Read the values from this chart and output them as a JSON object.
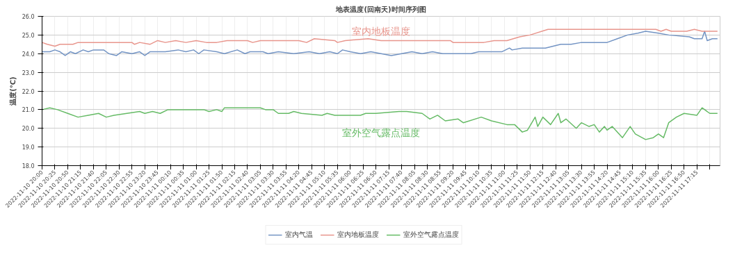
{
  "chart_data": {
    "type": "line",
    "title": "地表温度(回南天)时间序列图",
    "ylabel": "温度(℃)",
    "xlim": [
      "2022-11-10T20:00",
      "2022-11-11T18:00"
    ],
    "xticks": [
      {
        "value": "2022-11-10T20:00",
        "label": "2022-11-10 20:00"
      },
      {
        "value": "2022-11-10T20:25",
        "label": "2022-11-10 20:25"
      },
      {
        "value": "2022-11-10T20:50",
        "label": "2022-11-10 20:50"
      },
      {
        "value": "2022-11-10T21:15",
        "label": "2022-11-10 21:15"
      },
      {
        "value": "2022-11-10T21:40",
        "label": "2022-11-10 21:40"
      },
      {
        "value": "2022-11-10T22:05",
        "label": "2022-11-10 22:05"
      },
      {
        "value": "2022-11-10T22:30",
        "label": "2022-11-10 22:30"
      },
      {
        "value": "2022-11-10T22:55",
        "label": "2022-11-10 22:55"
      },
      {
        "value": "2022-11-10T23:20",
        "label": "2022-11-10 23:20"
      },
      {
        "value": "2022-11-10T23:45",
        "label": "2022-11-10 23:45"
      },
      {
        "value": "2022-11-11T00:10",
        "label": "2022-11-11 00:10"
      },
      {
        "value": "2022-11-11T00:35",
        "label": "2022-11-11 00:35"
      },
      {
        "value": "2022-11-11T01:00",
        "label": "2022-11-11 01:00"
      },
      {
        "value": "2022-11-11T01:25",
        "label": "2022-11-11 01:25"
      },
      {
        "value": "2022-11-11T01:50",
        "label": "2022-11-11 01:50"
      },
      {
        "value": "2022-11-11T02:15",
        "label": "2022-11-11 02:15"
      },
      {
        "value": "2022-11-11T02:40",
        "label": "2022-11-11 02:40"
      },
      {
        "value": "2022-11-11T03:05",
        "label": "2022-11-11 03:05"
      },
      {
        "value": "2022-11-11T03:30",
        "label": "2022-11-11 03:30"
      },
      {
        "value": "2022-11-11T03:55",
        "label": "2022-11-11 03:55"
      },
      {
        "value": "2022-11-11T04:20",
        "label": "2022-11-11 04:20"
      },
      {
        "value": "2022-11-11T04:45",
        "label": "2022-11-11 04:45"
      },
      {
        "value": "2022-11-11T05:10",
        "label": "2022-11-11 05:10"
      },
      {
        "value": "2022-11-11T05:35",
        "label": "2022-11-11 05:35"
      },
      {
        "value": "2022-11-11T06:00",
        "label": "2022-11-11 06:00"
      },
      {
        "value": "2022-11-11T06:25",
        "label": "2022-11-11 06:25"
      },
      {
        "value": "2022-11-11T06:50",
        "label": "2022-11-11 06:50"
      },
      {
        "value": "2022-11-11T07:15",
        "label": "2022-11-11 07:15"
      },
      {
        "value": "2022-11-11T07:40",
        "label": "2022-11-11 07:40"
      },
      {
        "value": "2022-11-11T08:05",
        "label": "2022-11-11 08:05"
      },
      {
        "value": "2022-11-11T08:30",
        "label": "2022-11-11 08:30"
      },
      {
        "value": "2022-11-11T08:55",
        "label": "2022-11-11 08:55"
      },
      {
        "value": "2022-11-11T09:20",
        "label": "2022-11-11 09:20"
      },
      {
        "value": "2022-11-11T09:45",
        "label": "2022-11-11 09:45"
      },
      {
        "value": "2022-11-11T10:10",
        "label": "2022-11-11 10:10"
      },
      {
        "value": "2022-11-11T10:35",
        "label": "2022-11-11 10:35"
      },
      {
        "value": "2022-11-11T11:00",
        "label": "2022-11-11 11:00"
      },
      {
        "value": "2022-11-11T11:25",
        "label": "2022-11-11 11:25"
      },
      {
        "value": "2022-11-11T11:50",
        "label": "2022-11-11 11:50"
      },
      {
        "value": "2022-11-11T12:15",
        "label": "2022-11-11 12:15"
      },
      {
        "value": "2022-11-11T12:40",
        "label": "2022-11-11 12:40"
      },
      {
        "value": "2022-11-11T13:05",
        "label": "2022-11-11 13:05"
      },
      {
        "value": "2022-11-11T13:30",
        "label": "2022-11-11 13:30"
      },
      {
        "value": "2022-11-11T13:55",
        "label": "2022-11-11 13:55"
      },
      {
        "value": "2022-11-11T14:20",
        "label": "2022-11-11 14:20"
      },
      {
        "value": "2022-11-11T14:45",
        "label": "2022-11-11 14:45"
      },
      {
        "value": "2022-11-11T15:10",
        "label": "2022-11-11 15:10"
      },
      {
        "value": "2022-11-11T15:35",
        "label": "2022-11-11 15:35"
      },
      {
        "value": "2022-11-11T16:00",
        "label": "2022-11-11 16:00"
      },
      {
        "value": "2022-11-11T16:25",
        "label": "2022-11-11 16:25"
      },
      {
        "value": "2022-11-11T16:50",
        "label": "2022-11-11 16:50"
      },
      {
        "value": "2022-11-11T17:15",
        "label": "2022-11-11 17:15"
      },
      {
        "value": "2022-11-11T17:40",
        "label": null
      }
    ],
    "ylim": [
      18,
      26
    ],
    "yticks": [
      {
        "value": 18,
        "label": "18.0"
      },
      {
        "value": 19,
        "label": "19.0"
      },
      {
        "value": 20,
        "label": "20.0"
      },
      {
        "value": 21,
        "label": "21.0"
      },
      {
        "value": 22,
        "label": "22.0"
      },
      {
        "value": 23,
        "label": "23.0"
      },
      {
        "value": 24,
        "label": "24.0"
      },
      {
        "value": 25,
        "label": "25.0"
      },
      {
        "value": 26,
        "label": "26.0"
      }
    ],
    "grid": true,
    "legend": "bottom",
    "marker": "none",
    "line_style": "solid",
    "annotations": [
      "室内地板温度",
      "室外空气露点温度"
    ],
    "series": [
      {
        "name": "室内气温",
        "color": "#7394c4",
        "x": [
          "2022-11-10T20:00",
          "2022-11-10T20:15",
          "2022-11-10T20:25",
          "2022-11-10T20:35",
          "2022-11-10T20:45",
          "2022-11-10T20:55",
          "2022-11-10T21:05",
          "2022-11-10T21:20",
          "2022-11-10T21:30",
          "2022-11-10T21:40",
          "2022-11-10T22:00",
          "2022-11-10T22:10",
          "2022-11-10T22:25",
          "2022-11-10T22:35",
          "2022-11-10T22:55",
          "2022-11-10T23:10",
          "2022-11-10T23:20",
          "2022-11-10T23:30",
          "2022-11-11T00:00",
          "2022-11-11T00:25",
          "2022-11-11T00:40",
          "2022-11-11T00:55",
          "2022-11-11T01:05",
          "2022-11-11T01:15",
          "2022-11-11T01:40",
          "2022-11-11T01:55",
          "2022-11-11T02:20",
          "2022-11-11T02:35",
          "2022-11-11T02:45",
          "2022-11-11T03:10",
          "2022-11-11T03:20",
          "2022-11-11T03:40",
          "2022-11-11T04:10",
          "2022-11-11T04:40",
          "2022-11-11T05:00",
          "2022-11-11T05:20",
          "2022-11-11T05:35",
          "2022-11-11T05:45",
          "2022-11-11T06:00",
          "2022-11-11T06:20",
          "2022-11-11T06:40",
          "2022-11-11T07:00",
          "2022-11-11T07:20",
          "2022-11-11T07:40",
          "2022-11-11T08:00",
          "2022-11-11T08:20",
          "2022-11-11T08:40",
          "2022-11-11T09:00",
          "2022-11-11T09:20",
          "2022-11-11T09:55",
          "2022-11-11T10:10",
          "2022-11-11T10:55",
          "2022-11-11T11:10",
          "2022-11-11T11:15",
          "2022-11-11T11:35",
          "2022-11-11T11:50",
          "2022-11-11T12:20",
          "2022-11-11T12:50",
          "2022-11-11T13:10",
          "2022-11-11T13:30",
          "2022-11-11T14:20",
          "2022-11-11T14:40",
          "2022-11-11T15:00",
          "2022-11-11T15:20",
          "2022-11-11T15:35",
          "2022-11-11T16:00",
          "2022-11-11T16:20",
          "2022-11-11T17:00",
          "2022-11-11T17:10",
          "2022-11-11T17:25",
          "2022-11-11T17:30",
          "2022-11-11T17:35",
          "2022-11-11T17:45",
          "2022-11-11T17:55"
        ],
        "values": [
          24.1,
          24.1,
          24.2,
          24.1,
          23.9,
          24.1,
          24.0,
          24.2,
          24.1,
          24.2,
          24.2,
          24.0,
          23.9,
          24.1,
          24.0,
          24.1,
          23.9,
          24.1,
          24.1,
          24.2,
          24.1,
          24.2,
          24.0,
          24.2,
          24.1,
          24.0,
          24.2,
          24.0,
          24.1,
          24.1,
          24.0,
          24.1,
          24.0,
          24.1,
          24.0,
          24.1,
          24.0,
          24.2,
          24.1,
          24.0,
          24.1,
          24.0,
          23.9,
          24.0,
          24.1,
          24.0,
          24.1,
          24.0,
          24.0,
          24.0,
          24.1,
          24.1,
          24.3,
          24.2,
          24.3,
          24.3,
          24.3,
          24.5,
          24.5,
          24.6,
          24.6,
          24.8,
          25.0,
          25.1,
          25.2,
          25.1,
          25.0,
          24.9,
          24.8,
          24.8,
          25.2,
          24.7,
          24.8,
          24.8
        ]
      },
      {
        "name": "室内地板温度",
        "color": "#e8958c",
        "x": [
          "2022-11-10T20:00",
          "2022-11-10T20:10",
          "2022-11-10T20:25",
          "2022-11-10T20:35",
          "2022-11-10T21:00",
          "2022-11-10T21:10",
          "2022-11-10T22:55",
          "2022-11-10T23:00",
          "2022-11-10T23:10",
          "2022-11-10T23:30",
          "2022-11-10T23:45",
          "2022-11-11T00:00",
          "2022-11-11T00:20",
          "2022-11-11T00:40",
          "2022-11-11T01:00",
          "2022-11-11T01:20",
          "2022-11-11T01:40",
          "2022-11-11T02:00",
          "2022-11-11T02:40",
          "2022-11-11T02:50",
          "2022-11-11T03:05",
          "2022-11-11T04:20",
          "2022-11-11T04:35",
          "2022-11-11T04:50",
          "2022-11-11T05:30",
          "2022-11-11T05:35",
          "2022-11-11T05:50",
          "2022-11-11T06:35",
          "2022-11-11T07:00",
          "2022-11-11T09:15",
          "2022-11-11T09:20",
          "2022-11-11T10:20",
          "2022-11-11T10:40",
          "2022-11-11T11:05",
          "2022-11-11T11:30",
          "2022-11-11T11:50",
          "2022-11-11T12:25",
          "2022-11-11T15:55",
          "2022-11-11T16:05",
          "2022-11-11T16:15",
          "2022-11-11T16:25",
          "2022-11-11T16:55",
          "2022-11-11T17:10",
          "2022-11-11T17:25",
          "2022-11-11T17:40",
          "2022-11-11T17:55"
        ],
        "values": [
          24.6,
          24.5,
          24.4,
          24.5,
          24.5,
          24.6,
          24.6,
          24.5,
          24.6,
          24.5,
          24.7,
          24.6,
          24.7,
          24.6,
          24.7,
          24.6,
          24.6,
          24.7,
          24.7,
          24.6,
          24.7,
          24.7,
          24.6,
          24.8,
          24.7,
          24.6,
          24.7,
          24.8,
          24.7,
          24.7,
          24.6,
          24.6,
          24.7,
          24.7,
          24.9,
          25.0,
          25.3,
          25.3,
          25.2,
          25.3,
          25.2,
          25.2,
          25.3,
          25.2,
          25.2,
          25.2
        ]
      },
      {
        "name": "室外空气露点温度",
        "color": "#66bb66",
        "x": [
          "2022-11-10T20:00",
          "2022-11-10T20:15",
          "2022-11-10T20:30",
          "2022-11-10T20:50",
          "2022-11-10T21:10",
          "2022-11-10T21:30",
          "2022-11-10T21:50",
          "2022-11-10T22:05",
          "2022-11-10T22:20",
          "2022-11-10T22:45",
          "2022-11-10T23:10",
          "2022-11-10T23:20",
          "2022-11-10T23:35",
          "2022-11-10T23:50",
          "2022-11-11T00:05",
          "2022-11-11T01:15",
          "2022-11-11T01:25",
          "2022-11-11T01:40",
          "2022-11-11T01:50",
          "2022-11-11T01:55",
          "2022-11-11T03:05",
          "2022-11-11T03:15",
          "2022-11-11T03:30",
          "2022-11-11T03:40",
          "2022-11-11T04:00",
          "2022-11-11T04:10",
          "2022-11-11T04:25",
          "2022-11-11T05:05",
          "2022-11-11T05:15",
          "2022-11-11T05:30",
          "2022-11-11T06:20",
          "2022-11-11T06:30",
          "2022-11-11T06:50",
          "2022-11-11T07:35",
          "2022-11-11T07:50",
          "2022-11-11T08:20",
          "2022-11-11T08:35",
          "2022-11-11T08:50",
          "2022-11-11T09:05",
          "2022-11-11T09:30",
          "2022-11-11T09:40",
          "2022-11-11T10:15",
          "2022-11-11T10:35",
          "2022-11-11T11:05",
          "2022-11-11T11:20",
          "2022-11-11T11:35",
          "2022-11-11T11:45",
          "2022-11-11T12:00",
          "2022-11-11T12:05",
          "2022-11-11T12:15",
          "2022-11-11T12:30",
          "2022-11-11T12:45",
          "2022-11-11T12:50",
          "2022-11-11T13:00",
          "2022-11-11T13:20",
          "2022-11-11T13:30",
          "2022-11-11T13:45",
          "2022-11-11T13:55",
          "2022-11-11T14:05",
          "2022-11-11T14:15",
          "2022-11-11T14:20",
          "2022-11-11T14:30",
          "2022-11-11T14:50",
          "2022-11-11T15:05",
          "2022-11-11T15:15",
          "2022-11-11T15:35",
          "2022-11-11T15:50",
          "2022-11-11T16:00",
          "2022-11-11T16:10",
          "2022-11-11T16:20",
          "2022-11-11T16:35",
          "2022-11-11T16:50",
          "2022-11-11T17:15",
          "2022-11-11T17:25",
          "2022-11-11T17:40",
          "2022-11-11T17:55"
        ],
        "values": [
          21.0,
          21.1,
          21.0,
          20.8,
          20.6,
          20.7,
          20.8,
          20.6,
          20.7,
          20.8,
          20.9,
          20.8,
          20.9,
          20.8,
          21.0,
          21.0,
          20.9,
          21.0,
          20.9,
          21.1,
          21.1,
          21.0,
          21.0,
          20.8,
          20.8,
          20.9,
          20.8,
          20.7,
          20.8,
          20.7,
          20.7,
          20.8,
          20.8,
          20.9,
          20.9,
          20.8,
          20.5,
          20.7,
          20.4,
          20.5,
          20.3,
          20.6,
          20.4,
          20.2,
          20.2,
          19.8,
          19.9,
          20.6,
          20.1,
          20.6,
          20.2,
          20.8,
          20.3,
          20.5,
          20.0,
          20.3,
          20.1,
          20.2,
          19.8,
          20.1,
          19.9,
          20.1,
          19.5,
          20.1,
          19.7,
          19.4,
          19.5,
          19.7,
          19.5,
          20.3,
          20.6,
          20.8,
          20.7,
          21.1,
          20.8,
          20.8
        ]
      }
    ]
  }
}
